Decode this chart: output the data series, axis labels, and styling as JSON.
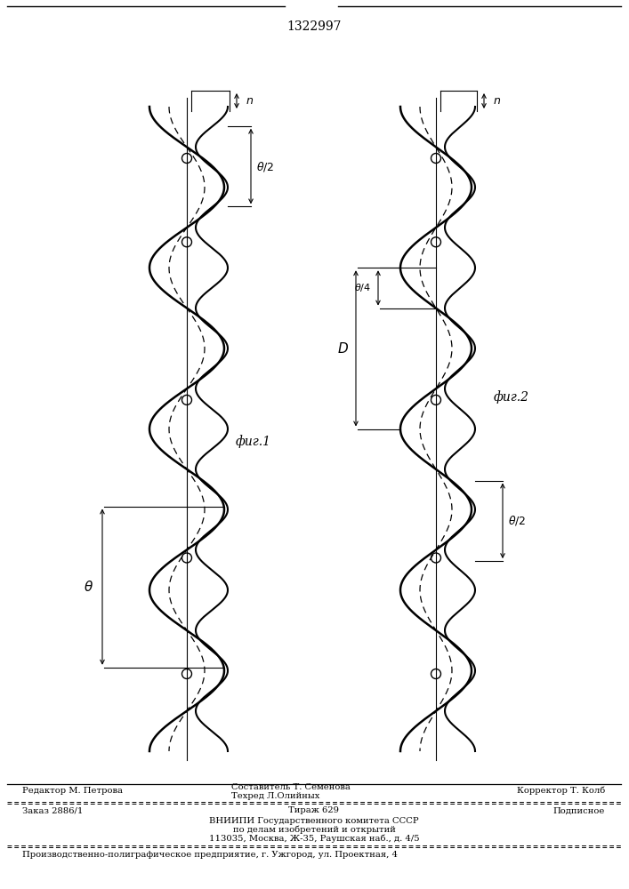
{
  "title": "1322997",
  "title_fontsize": 11,
  "bg_color": "#ffffff",
  "fig1_label": "фиг.1",
  "fig2_label": "фиг.2",
  "footer_line1_left": "Редактор М. Петрова",
  "footer_line1_center": "Составитель Т. Семенова",
  "footer_line1_center2": "Техред Л.Олийных",
  "footer_line1_right": "Корректор Т. Колб",
  "footer_line2_left": "Заказ 2886/1",
  "footer_line2_center": "Тираж 629",
  "footer_line2_right": "Подписное",
  "footer_line3": "ВНИИПИ Государственного комитета СССР",
  "footer_line4": "по делам изобретений и открытий",
  "footer_line5": "113035, Москва, Ж-35, Раушская наб., д. 4/5",
  "footer_line6": "Производственно-полиграфическое предприятие, г. Ужгород, ул. Проектная, 4"
}
